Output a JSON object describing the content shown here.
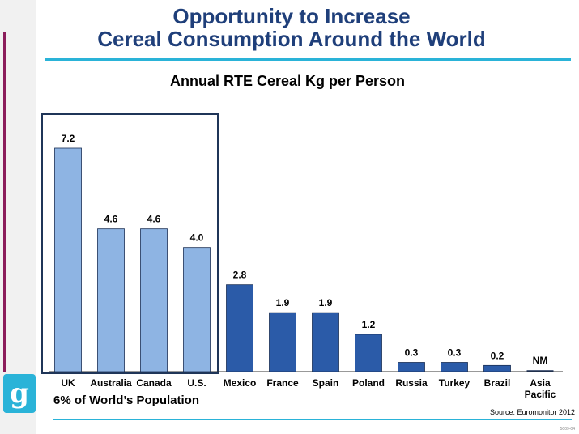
{
  "slide": {
    "title_line1": "Opportunity to Increase",
    "title_line2": "Cereal Consumption Around the World",
    "callout": "6% of World’s Population",
    "source": "Source: Euromonitor 2012",
    "page_code": "5009-04",
    "logo_glyph": "g"
  },
  "colors": {
    "highlight_bar": "#8eb4e3",
    "standard_bar": "#2b5ba8",
    "title": "#1f3f7a",
    "accent": "#2ab3d8",
    "box_border": "#1f3558"
  },
  "chart_data": {
    "type": "bar",
    "title": "Annual RTE Cereal Kg per Person",
    "categories": [
      "UK",
      "Australia",
      "Canada",
      "U.S.",
      "Mexico",
      "France",
      "Spain",
      "Poland",
      "Russia",
      "Turkey",
      "Brazil",
      "Asia\nPacific"
    ],
    "values": [
      7.2,
      4.6,
      4.6,
      4.0,
      2.8,
      1.9,
      1.9,
      1.2,
      0.3,
      0.3,
      0.2,
      null
    ],
    "value_labels": [
      "7.2",
      "4.6",
      "4.6",
      "4.0",
      "2.8",
      "1.9",
      "1.9",
      "1.2",
      "0.3",
      "0.3",
      "0.2",
      "NM"
    ],
    "highlighted": [
      "UK",
      "Australia",
      "Canada",
      "U.S."
    ],
    "ylim": [
      0,
      7.2
    ],
    "grid": false,
    "legend": "none"
  }
}
